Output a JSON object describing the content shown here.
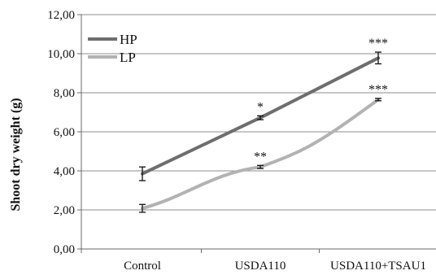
{
  "chart_data": {
    "type": "line",
    "title": "",
    "xlabel": "",
    "ylabel": "Shoot dry  weight (g)",
    "categories": [
      "Control",
      "USDA110",
      "USDA110+TSAU1"
    ],
    "ylim": [
      0,
      12
    ],
    "yticks": [
      "0,00",
      "2,00",
      "4,00",
      "6,00",
      "8,00",
      "10,00",
      "12,00"
    ],
    "grid": true,
    "legend_position": "top-left",
    "series": [
      {
        "name": "HP",
        "color": "#6e6e6e",
        "values": [
          3.85,
          6.72,
          9.78
        ],
        "errors": [
          0.35,
          0.1,
          0.3
        ],
        "annotations": [
          "",
          "*",
          "***"
        ]
      },
      {
        "name": "LP",
        "color": "#b2b2b2",
        "values": [
          2.08,
          4.2,
          7.65
        ],
        "errors": [
          0.2,
          0.08,
          0.06
        ],
        "annotations": [
          "",
          "**",
          "***"
        ]
      }
    ]
  }
}
